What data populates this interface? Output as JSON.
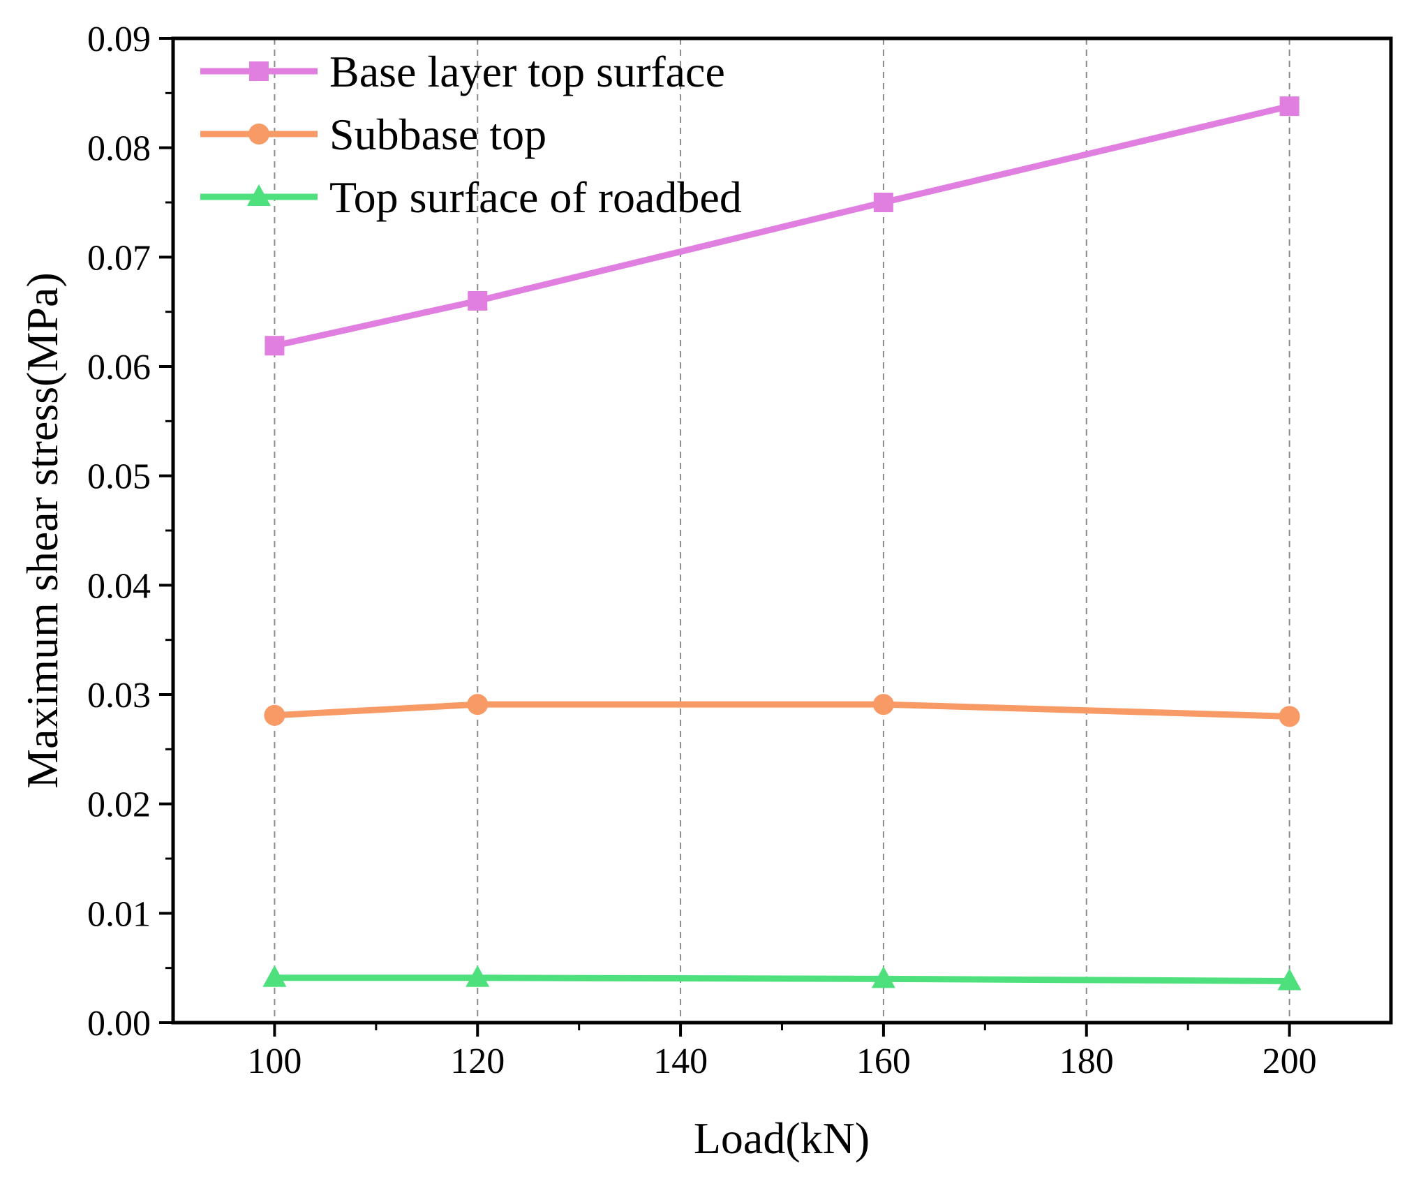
{
  "chart_data": {
    "type": "line",
    "title": "",
    "xlabel": "Load(kN)",
    "ylabel": "Maximum shear stress(MPa)",
    "xlim": [
      90,
      210
    ],
    "ylim": [
      0,
      0.09
    ],
    "x_ticks": [
      100,
      120,
      140,
      160,
      180,
      200
    ],
    "x_tick_labels": [
      "100",
      "120",
      "140",
      "160",
      "180",
      "200"
    ],
    "y_ticks": [
      0,
      0.01,
      0.02,
      0.03,
      0.04,
      0.05,
      0.06,
      0.07,
      0.08,
      0.09
    ],
    "y_tick_labels": [
      "0.00",
      "0.01",
      "0.02",
      "0.03",
      "0.04",
      "0.05",
      "0.06",
      "0.07",
      "0.08",
      "0.09"
    ],
    "grid": "vertical dashed",
    "legend_position": "top-left",
    "x": [
      100,
      120,
      160,
      200
    ],
    "series": [
      {
        "name": "Base layer top surface",
        "marker": "square",
        "color": "#e07fe0",
        "values": [
          0.0619,
          0.066,
          0.075,
          0.0838
        ]
      },
      {
        "name": "Subbase top",
        "marker": "circle",
        "color": "#f79a65",
        "values": [
          0.0281,
          0.0291,
          0.0291,
          0.028
        ]
      },
      {
        "name": "Top surface of roadbed",
        "marker": "triangle",
        "color": "#4fe07e",
        "values": [
          0.0041,
          0.0041,
          0.004,
          0.0038
        ]
      }
    ]
  }
}
